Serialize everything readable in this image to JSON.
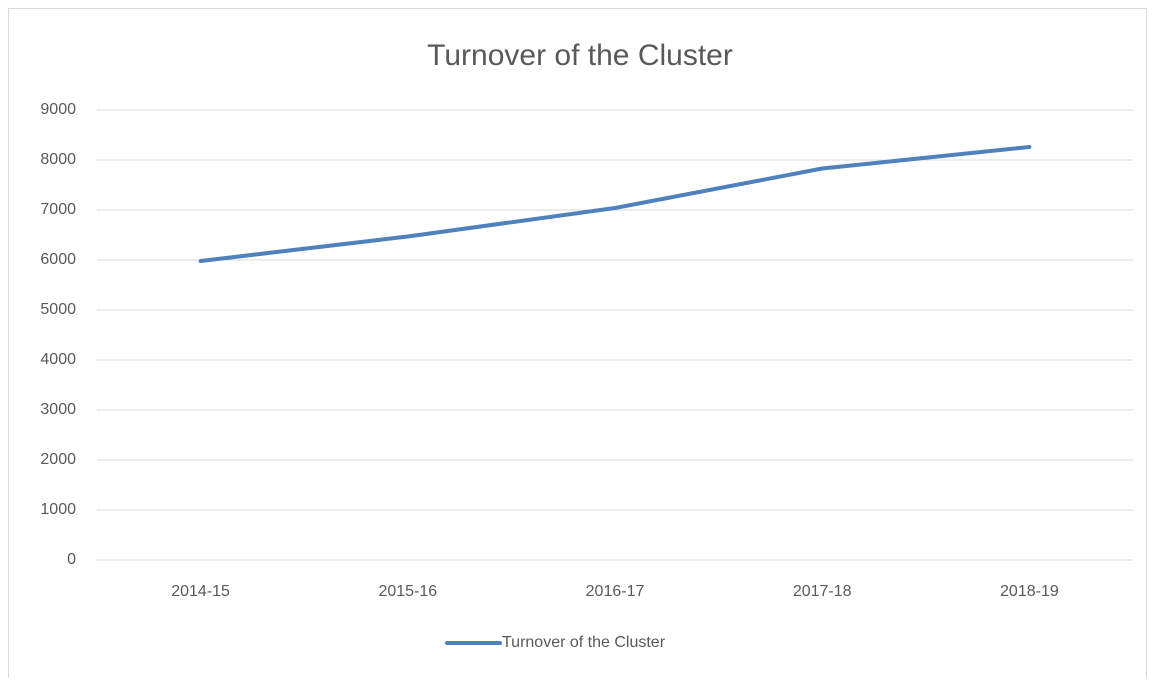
{
  "chart_data": {
    "type": "line",
    "title": "Turnover of the Cluster",
    "categories": [
      "2014-15",
      "2015-16",
      "2016-17",
      "2017-18",
      "2018-19"
    ],
    "series": [
      {
        "name": "Turnover of the Cluster",
        "color": "#4f81bd",
        "values": [
          5980,
          6470,
          7040,
          7830,
          8260
        ]
      }
    ],
    "ylim": [
      0,
      9000
    ],
    "yticks": [
      0,
      1000,
      2000,
      3000,
      4000,
      5000,
      6000,
      7000,
      8000,
      9000
    ],
    "grid": true,
    "legend": "bottom"
  }
}
